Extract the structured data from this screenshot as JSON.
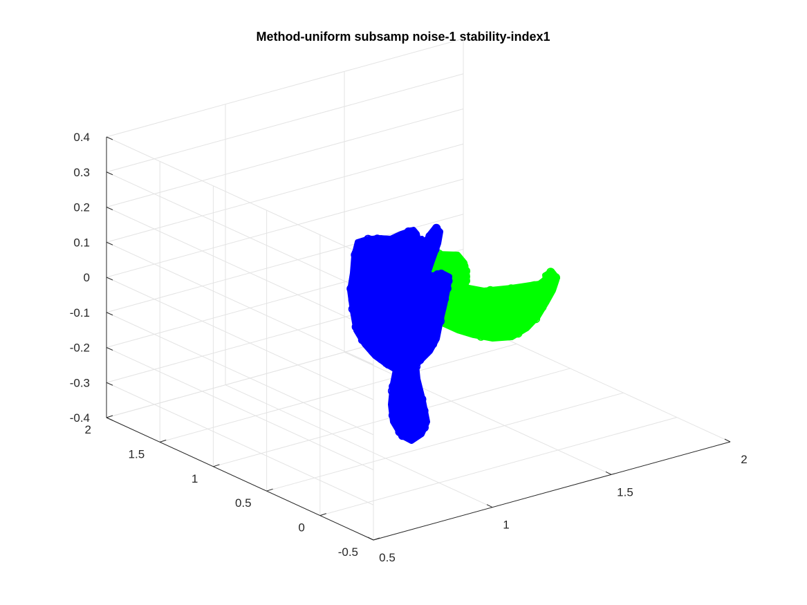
{
  "chart_data": {
    "type": "scatter",
    "dimensions": 3,
    "title": "Method-uniform subsamp noise-1 stability-index1",
    "xlabel": "",
    "ylabel": "",
    "zlabel": "",
    "grid": true,
    "x_ticks": [
      "0.5",
      "1",
      "1.5",
      "2"
    ],
    "y_ticks": [
      "-0.5",
      "0",
      "0.5",
      "1",
      "1.5",
      "2"
    ],
    "z_ticks": [
      "0.4",
      "0.3",
      "0.2",
      "0.1",
      "0",
      "-0.1",
      "-0.2",
      "-0.3",
      "-0.4"
    ],
    "xlim": [
      0.5,
      2
    ],
    "ylim": [
      -0.5,
      2
    ],
    "zlim": [
      -0.4,
      0.4
    ],
    "marker": "circle",
    "series": [
      {
        "color": "#00ff00"
      },
      {
        "color": "#0000ff"
      }
    ]
  }
}
